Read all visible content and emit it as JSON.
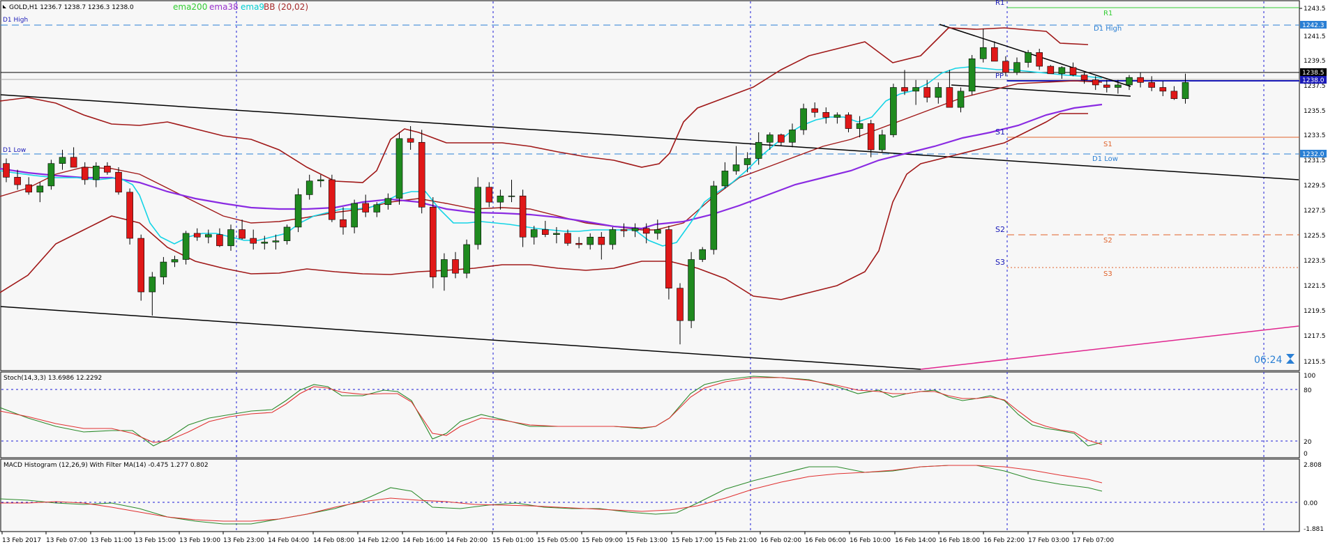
{
  "header": {
    "symbol_text": "GOLD,H1  1236.7 1238.7 1236.3 1238.0",
    "ind": {
      "ema200": {
        "text": "ema200",
        "color": "#32CD32"
      },
      "ema38": {
        "text": "ema38",
        "color": "#9932CC"
      },
      "ema9": {
        "text": "ema9",
        "color": "#00CED1"
      },
      "bb": {
        "text": "BB (20,02)",
        "color": "#A52A2A"
      }
    }
  },
  "levels": {
    "d1_high_left": "D1 High",
    "d1_low_left": "D1 Low",
    "d1_high_right": "D1 High",
    "d1_low_right": "D1 Low",
    "r1": "R1",
    "pp": "PP",
    "s1": "S1",
    "s2": "S2",
    "s3": "S3",
    "r1_right": "R1",
    "s1_right": "S1",
    "s2_right": "S2",
    "s3_right": "S3"
  },
  "price_axis": {
    "ticks": [
      "1243.5",
      "1241.5",
      "1239.5",
      "1237.5",
      "1235.5",
      "1233.5",
      "1231.5",
      "1229.5",
      "1227.5",
      "1225.5",
      "1223.5",
      "1221.5",
      "1219.5",
      "1217.5",
      "1215.5"
    ],
    "tag_d1_high": "1242.3",
    "tag_current_top": "1238.5",
    "tag_current": "1238.0",
    "tag_d1_low": "1232.0"
  },
  "timer": "06:24",
  "stoch": {
    "title": "Stoch(14,3,3) 13.6986 12.2292",
    "ticks": [
      "100",
      "80",
      "20",
      "0"
    ]
  },
  "macd": {
    "title": "MACD Histogram (12,26,9) With Filter MA(14) -0.475 1.277 0.802",
    "ticks": [
      "2.808",
      "0.00",
      "-1.881"
    ]
  },
  "time_axis": {
    "labels": [
      "13 Feb 2017",
      "13 Feb 07:00",
      "13 Feb 11:00",
      "13 Feb 15:00",
      "13 Feb 19:00",
      "13 Feb 23:00",
      "14 Feb 04:00",
      "14 Feb 08:00",
      "14 Feb 12:00",
      "14 Feb 16:00",
      "14 Feb 20:00",
      "15 Feb 01:00",
      "15 Feb 05:00",
      "15 Feb 09:00",
      "15 Feb 13:00",
      "15 Feb 17:00",
      "15 Feb 21:00",
      "16 Feb 02:00",
      "16 Feb 06:00",
      "16 Feb 10:00",
      "16 Feb 14:00",
      "16 Feb 18:00",
      "16 Feb 22:00",
      "17 Feb 03:00",
      "17 Feb 07:00"
    ]
  },
  "chart_data": {
    "type": "candlestick",
    "symbol": "GOLD",
    "timeframe": "H1",
    "ylim": [
      1215.0,
      1244.5
    ],
    "levels": {
      "d1_high": 1242.3,
      "d1_low": 1232.0,
      "r1": 1243.4,
      "pp": 1238.2,
      "s1": 1233.3,
      "s2": 1227.6,
      "s3": 1222.9,
      "current": 1238.0
    },
    "candles": [
      [
        1231.5,
        1231.9,
        1230.0,
        1230.4
      ],
      [
        1230.4,
        1231.0,
        1229.4,
        1229.8
      ],
      [
        1229.8,
        1230.4,
        1229.0,
        1229.2
      ],
      [
        1229.2,
        1230.0,
        1228.4,
        1229.7
      ],
      [
        1229.7,
        1231.8,
        1229.4,
        1231.5
      ],
      [
        1231.5,
        1232.6,
        1231.0,
        1232.0
      ],
      [
        1232.0,
        1232.8,
        1231.3,
        1231.2
      ],
      [
        1231.2,
        1231.6,
        1229.8,
        1230.2
      ],
      [
        1230.2,
        1231.6,
        1229.6,
        1231.3
      ],
      [
        1231.3,
        1231.6,
        1230.6,
        1230.8
      ],
      [
        1230.8,
        1231.2,
        1229.0,
        1229.2
      ],
      [
        1229.2,
        1229.5,
        1225.0,
        1225.5
      ],
      [
        1225.5,
        1225.8,
        1220.5,
        1221.2
      ],
      [
        1221.2,
        1222.8,
        1219.3,
        1222.4
      ],
      [
        1222.4,
        1224.0,
        1221.8,
        1223.6
      ],
      [
        1223.6,
        1224.1,
        1223.2,
        1223.8
      ],
      [
        1223.8,
        1226.1,
        1223.4,
        1225.9
      ],
      [
        1225.9,
        1226.3,
        1225.3,
        1225.6
      ],
      [
        1225.6,
        1226.2,
        1225.1,
        1225.8
      ],
      [
        1225.8,
        1226.3,
        1224.8,
        1224.9
      ],
      [
        1224.9,
        1226.6,
        1224.5,
        1226.2
      ],
      [
        1226.2,
        1227.0,
        1225.4,
        1225.5
      ],
      [
        1225.5,
        1226.2,
        1224.6,
        1225.1
      ],
      [
        1225.1,
        1225.7,
        1224.6,
        1225.2
      ],
      [
        1225.2,
        1225.8,
        1224.6,
        1225.3
      ],
      [
        1225.3,
        1226.6,
        1225.0,
        1226.4
      ],
      [
        1226.4,
        1229.5,
        1226.0,
        1229.0
      ],
      [
        1229.0,
        1230.6,
        1228.6,
        1230.1
      ],
      [
        1230.1,
        1230.6,
        1229.6,
        1230.2
      ],
      [
        1230.2,
        1230.6,
        1226.8,
        1227.0
      ],
      [
        1227.0,
        1228.0,
        1225.8,
        1226.4
      ],
      [
        1226.4,
        1228.6,
        1225.9,
        1228.3
      ],
      [
        1228.3,
        1229.0,
        1227.2,
        1227.6
      ],
      [
        1227.6,
        1228.4,
        1227.2,
        1228.2
      ],
      [
        1228.2,
        1229.1,
        1227.8,
        1228.7
      ],
      [
        1228.7,
        1234.0,
        1228.2,
        1233.5
      ],
      [
        1233.5,
        1234.5,
        1232.6,
        1233.2
      ],
      [
        1233.2,
        1234.2,
        1227.5,
        1228.0
      ],
      [
        1228.0,
        1228.8,
        1221.5,
        1222.4
      ],
      [
        1222.4,
        1224.3,
        1221.3,
        1223.8
      ],
      [
        1223.8,
        1224.4,
        1222.3,
        1222.7
      ],
      [
        1222.7,
        1225.4,
        1222.3,
        1225.0
      ],
      [
        1225.0,
        1230.4,
        1224.6,
        1229.6
      ],
      [
        1229.6,
        1230.0,
        1228.0,
        1228.4
      ],
      [
        1228.4,
        1229.4,
        1227.8,
        1228.9
      ],
      [
        1228.9,
        1230.2,
        1228.4,
        1228.9
      ],
      [
        1228.9,
        1229.4,
        1224.8,
        1225.6
      ],
      [
        1225.6,
        1226.5,
        1225.0,
        1226.2
      ],
      [
        1226.2,
        1226.9,
        1225.6,
        1225.8
      ],
      [
        1225.8,
        1226.4,
        1225.1,
        1225.9
      ],
      [
        1225.9,
        1226.2,
        1224.9,
        1225.1
      ],
      [
        1225.1,
        1225.6,
        1224.7,
        1225.0
      ],
      [
        1225.0,
        1225.9,
        1224.6,
        1225.6
      ],
      [
        1225.6,
        1226.0,
        1223.8,
        1225.0
      ],
      [
        1225.0,
        1226.4,
        1224.6,
        1226.2
      ],
      [
        1226.2,
        1226.7,
        1225.6,
        1226.1
      ],
      [
        1226.1,
        1226.7,
        1225.6,
        1226.3
      ],
      [
        1226.3,
        1226.7,
        1225.1,
        1225.9
      ],
      [
        1225.9,
        1227.0,
        1225.4,
        1226.2
      ],
      [
        1226.2,
        1226.5,
        1220.6,
        1221.5
      ],
      [
        1221.5,
        1221.9,
        1217.0,
        1218.9
      ],
      [
        1218.9,
        1224.4,
        1218.3,
        1223.8
      ],
      [
        1223.8,
        1224.8,
        1223.6,
        1224.6
      ],
      [
        1224.6,
        1230.1,
        1224.2,
        1229.7
      ],
      [
        1229.7,
        1231.6,
        1229.5,
        1230.9
      ],
      [
        1230.9,
        1232.9,
        1230.6,
        1231.4
      ],
      [
        1231.4,
        1232.4,
        1230.8,
        1231.9
      ],
      [
        1231.9,
        1234.0,
        1231.4,
        1233.2
      ],
      [
        1233.2,
        1234.0,
        1232.6,
        1233.8
      ],
      [
        1233.8,
        1233.9,
        1232.9,
        1233.2
      ],
      [
        1233.2,
        1234.7,
        1232.8,
        1234.2
      ],
      [
        1234.2,
        1236.3,
        1233.8,
        1235.9
      ],
      [
        1235.9,
        1236.4,
        1235.2,
        1235.6
      ],
      [
        1235.6,
        1236.0,
        1234.7,
        1235.2
      ],
      [
        1235.2,
        1235.6,
        1234.7,
        1235.4
      ],
      [
        1235.4,
        1235.6,
        1234.0,
        1234.3
      ],
      [
        1234.3,
        1235.3,
        1233.6,
        1234.7
      ],
      [
        1234.7,
        1235.0,
        1232.0,
        1232.6
      ],
      [
        1232.6,
        1234.2,
        1232.4,
        1233.8
      ],
      [
        1233.8,
        1237.9,
        1233.6,
        1237.6
      ],
      [
        1237.6,
        1239.0,
        1237.0,
        1237.3
      ],
      [
        1237.3,
        1238.2,
        1236.2,
        1237.6
      ],
      [
        1237.6,
        1238.2,
        1236.4,
        1236.8
      ],
      [
        1236.8,
        1238.0,
        1236.3,
        1237.6
      ],
      [
        1237.6,
        1239.0,
        1236.0,
        1236.0
      ],
      [
        1236.0,
        1237.6,
        1235.6,
        1237.3
      ],
      [
        1237.3,
        1240.2,
        1237.0,
        1239.9
      ],
      [
        1239.9,
        1242.3,
        1239.6,
        1240.8
      ],
      [
        1240.8,
        1241.3,
        1239.8,
        1239.7
      ],
      [
        1239.7,
        1240.1,
        1238.5,
        1238.8
      ],
      [
        1238.8,
        1240.0,
        1238.6,
        1239.6
      ],
      [
        1239.6,
        1240.6,
        1239.2,
        1240.4
      ],
      [
        1240.4,
        1240.7,
        1239.0,
        1239.3
      ],
      [
        1239.3,
        1239.4,
        1238.7,
        1238.7
      ],
      [
        1238.7,
        1239.3,
        1238.3,
        1239.2
      ],
      [
        1239.2,
        1239.6,
        1238.5,
        1238.6
      ],
      [
        1238.6,
        1238.8,
        1237.9,
        1238.2
      ],
      [
        1238.2,
        1238.5,
        1237.4,
        1237.8
      ],
      [
        1237.8,
        1238.2,
        1237.2,
        1237.6
      ],
      [
        1237.6,
        1238.2,
        1237.1,
        1237.8
      ],
      [
        1237.8,
        1238.6,
        1237.4,
        1238.4
      ],
      [
        1238.4,
        1238.8,
        1237.6,
        1238.0
      ],
      [
        1238.0,
        1238.5,
        1237.3,
        1237.6
      ],
      [
        1237.6,
        1238.1,
        1236.9,
        1237.3
      ],
      [
        1237.3,
        1237.7,
        1236.6,
        1236.7
      ],
      [
        1236.7,
        1238.7,
        1236.3,
        1238.0
      ]
    ],
    "stoch_range": [
      0,
      100
    ],
    "macd_range": [
      -1.881,
      2.808
    ]
  }
}
